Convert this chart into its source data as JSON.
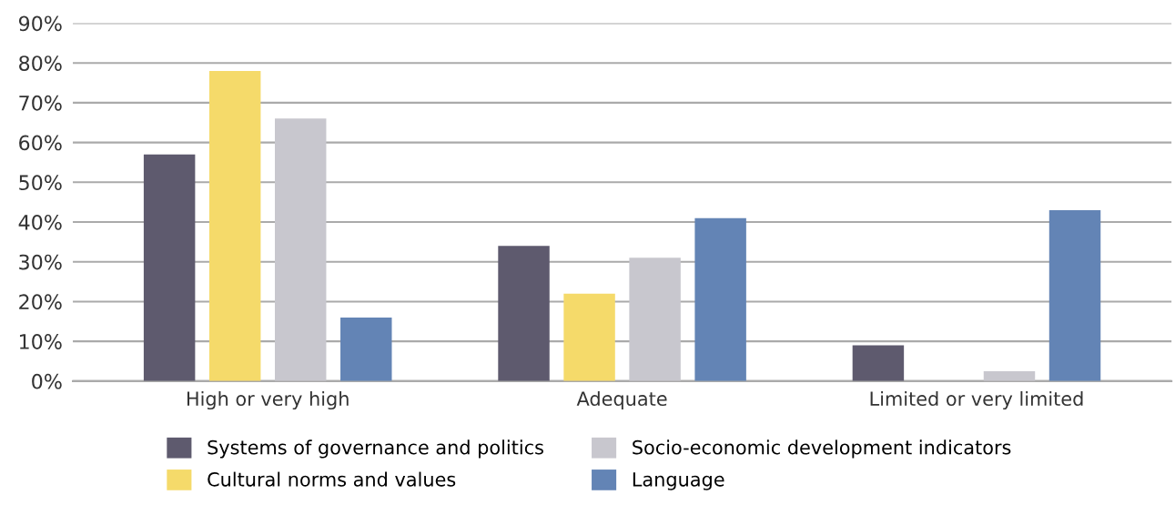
{
  "chart_data": {
    "type": "bar",
    "categories": [
      "High or very high",
      "Adequate",
      "Limited or very limited"
    ],
    "series": [
      {
        "name": "Systems of governance and politics",
        "color": "#5e5a6e",
        "values": [
          57,
          34,
          9
        ]
      },
      {
        "name": "Cultural norms and values",
        "color": "#f5da6a",
        "values": [
          78,
          22,
          0
        ]
      },
      {
        "name": "Socio-economic development indicators",
        "color": "#c8c7ce",
        "values": [
          66,
          31,
          2.5
        ]
      },
      {
        "name": "Language",
        "color": "#6384b5",
        "values": [
          16,
          41,
          43
        ]
      }
    ],
    "ylim": [
      0,
      90
    ],
    "yticks": [
      {
        "value": 0,
        "label": "0%"
      },
      {
        "value": 10,
        "label": "10%"
      },
      {
        "value": 20,
        "label": "20%"
      },
      {
        "value": 30,
        "label": "30%"
      },
      {
        "value": 40,
        "label": "40%"
      },
      {
        "value": 50,
        "label": "50%"
      },
      {
        "value": 60,
        "label": "60%"
      },
      {
        "value": 70,
        "label": "70%"
      },
      {
        "value": 80,
        "label": "80%"
      },
      {
        "value": 90,
        "label": "90%"
      }
    ],
    "grid": "y",
    "legend": "bottom"
  }
}
